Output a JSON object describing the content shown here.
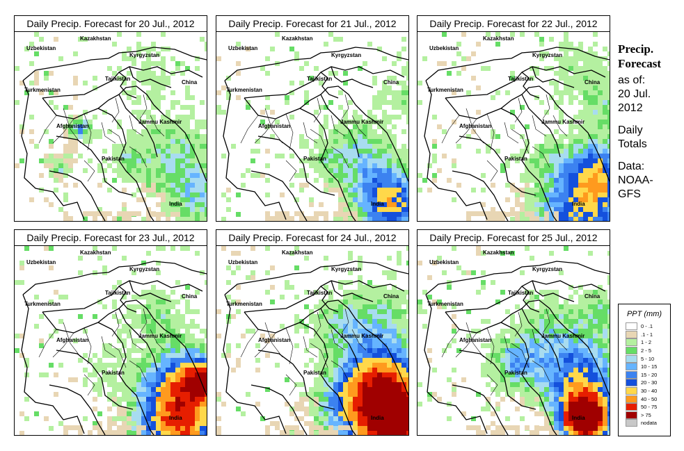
{
  "panels": [
    {
      "title": "Daily Precip. Forecast for  20 Jul., 2012",
      "profile": "d20"
    },
    {
      "title": "Daily Precip. Forecast for  21 Jul., 2012",
      "profile": "d21"
    },
    {
      "title": "Daily Precip. Forecast for  22 Jul., 2012",
      "profile": "d22"
    },
    {
      "title": "Daily Precip. Forecast for  23 Jul., 2012",
      "profile": "d23"
    },
    {
      "title": "Daily Precip. Forecast for  24 Jul., 2012",
      "profile": "d24"
    },
    {
      "title": "Daily Precip. Forecast for  25 Jul., 2012",
      "profile": "d25"
    }
  ],
  "map_labels": {
    "kazakhstan": "Kazakhstan",
    "uzbekistan": "Uzbekistan",
    "kyrgyzstan": "Kyrgyzstan",
    "tajikistan": "Tajikistan",
    "turkmenistan": "Turkmenistan",
    "china": "China",
    "afghanistan": "Afghanistan",
    "jammu_kashmir": "Jammu Kashmir",
    "pakistan": "Pakistan",
    "india": "India"
  },
  "side": {
    "title_line1": "Precip.",
    "title_line2": "Forecast",
    "asof_line1": "as of:",
    "asof_line2": "20 Jul.",
    "asof_line3": "2012",
    "totals_line1": "Daily",
    "totals_line2": "Totals",
    "data_line1": "Data:",
    "data_line2": "NOAA-",
    "data_line3": "GFS"
  },
  "legend": {
    "title": "PPT (mm)",
    "items": [
      {
        "label": "0 - .1",
        "color": "#ffffff"
      },
      {
        "label": ".1 - 1",
        "color": "#e8d6b4"
      },
      {
        "label": "1 - 2",
        "color": "#b4f0a0"
      },
      {
        "label": "2 - 5",
        "color": "#66dd66"
      },
      {
        "label": "5 - 10",
        "color": "#a8dcf0"
      },
      {
        "label": "10 - 15",
        "color": "#66b4ff"
      },
      {
        "label": "15 - 20",
        "color": "#3c82f0"
      },
      {
        "label": "20 - 30",
        "color": "#1450dc"
      },
      {
        "label": "30 - 40",
        "color": "#ffd84a"
      },
      {
        "label": "40 - 50",
        "color": "#ff9a1e"
      },
      {
        "label": "50 - 75",
        "color": "#e61e00"
      },
      {
        "label": "> 75",
        "color": "#a00000"
      },
      {
        "label": "nodata",
        "color": "#c8c8c8"
      }
    ]
  }
}
